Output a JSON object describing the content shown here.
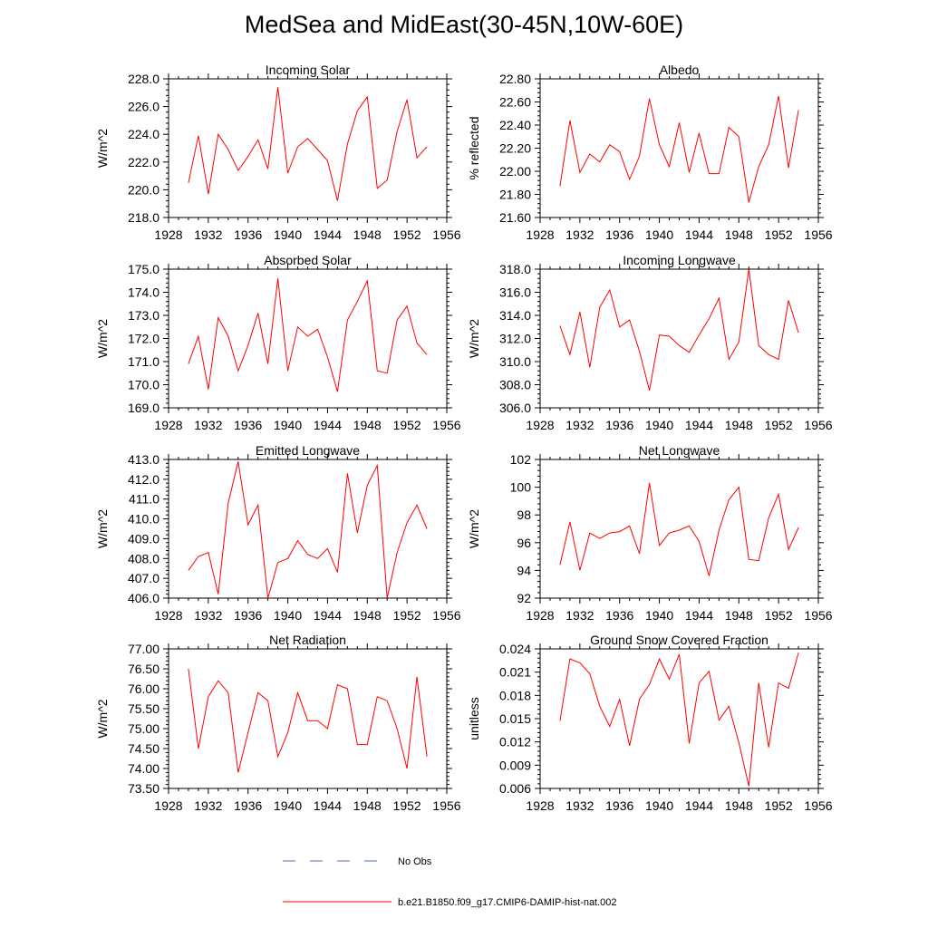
{
  "title": "MedSea and MidEast(30-45N,10W-60E)",
  "line_color": "#ff0000",
  "obs_color": "#4f6fbf",
  "legend": {
    "obs_label": "No Obs",
    "model_label": "b.e21.B1850.f09_g17.CMIP6-DAMIP-hist-nat.002"
  },
  "chart_data": [
    {
      "type": "line",
      "title": "Incoming Solar",
      "ylabel": "W/m^2",
      "xlim": [
        1928,
        1956
      ],
      "ylim": [
        218,
        228
      ],
      "xticks": [
        "1928",
        "1932",
        "1936",
        "1940",
        "1944",
        "1948",
        "1952",
        "1956"
      ],
      "yticks": [
        "218.0",
        "220.0",
        "222.0",
        "224.0",
        "226.0",
        "228.0"
      ],
      "x": [
        1930,
        1931,
        1932,
        1933,
        1934,
        1935,
        1936,
        1937,
        1938,
        1939,
        1940,
        1941,
        1942,
        1943,
        1944,
        1945,
        1946,
        1947,
        1948,
        1949,
        1950,
        1951,
        1952,
        1953,
        1954
      ],
      "values": [
        220.5,
        223.9,
        219.7,
        224.0,
        222.9,
        221.4,
        222.4,
        223.6,
        221.5,
        227.4,
        221.2,
        223.1,
        223.7,
        222.9,
        222.1,
        219.2,
        223.3,
        225.7,
        226.7,
        220.1,
        220.7,
        224.2,
        226.5,
        222.3,
        223.1
      ]
    },
    {
      "type": "line",
      "title": "Albedo",
      "ylabel": "% reflected",
      "xlim": [
        1928,
        1956
      ],
      "ylim": [
        21.6,
        22.8
      ],
      "xticks": [
        "1928",
        "1932",
        "1936",
        "1940",
        "1944",
        "1948",
        "1952",
        "1956"
      ],
      "yticks": [
        "21.60",
        "21.80",
        "22.00",
        "22.20",
        "22.40",
        "22.60",
        "22.80"
      ],
      "x": [
        1930,
        1931,
        1932,
        1933,
        1934,
        1935,
        1936,
        1937,
        1938,
        1939,
        1940,
        1941,
        1942,
        1943,
        1944,
        1945,
        1946,
        1947,
        1948,
        1949,
        1950,
        1951,
        1952,
        1953,
        1954
      ],
      "values": [
        21.87,
        22.44,
        21.99,
        22.15,
        22.08,
        22.23,
        22.17,
        21.93,
        22.13,
        22.63,
        22.23,
        22.04,
        22.42,
        21.99,
        22.33,
        21.98,
        21.98,
        22.38,
        22.3,
        21.73,
        22.04,
        22.23,
        22.65,
        22.03,
        22.53
      ]
    },
    {
      "type": "line",
      "title": "Absorbed Solar",
      "ylabel": "W/m^2",
      "xlim": [
        1928,
        1956
      ],
      "ylim": [
        169,
        175
      ],
      "xticks": [
        "1928",
        "1932",
        "1936",
        "1940",
        "1944",
        "1948",
        "1952",
        "1956"
      ],
      "yticks": [
        "169.0",
        "170.0",
        "171.0",
        "172.0",
        "173.0",
        "174.0",
        "175.0"
      ],
      "x": [
        1930,
        1931,
        1932,
        1933,
        1934,
        1935,
        1936,
        1937,
        1938,
        1939,
        1940,
        1941,
        1942,
        1943,
        1944,
        1945,
        1946,
        1947,
        1948,
        1949,
        1950,
        1951,
        1952,
        1953,
        1954
      ],
      "values": [
        170.9,
        172.1,
        169.8,
        172.9,
        172.1,
        170.6,
        171.7,
        173.1,
        170.9,
        174.6,
        170.6,
        172.5,
        172.1,
        172.4,
        171.2,
        169.7,
        172.8,
        173.6,
        174.5,
        170.6,
        170.5,
        172.8,
        173.4,
        171.8,
        171.3
      ]
    },
    {
      "type": "line",
      "title": "Incoming Longwave",
      "ylabel": "W/m^2",
      "xlim": [
        1928,
        1956
      ],
      "ylim": [
        306,
        318
      ],
      "xticks": [
        "1928",
        "1932",
        "1936",
        "1940",
        "1944",
        "1948",
        "1952",
        "1956"
      ],
      "yticks": [
        "306.0",
        "308.0",
        "310.0",
        "312.0",
        "314.0",
        "316.0",
        "318.0"
      ],
      "x": [
        1930,
        1931,
        1932,
        1933,
        1934,
        1935,
        1936,
        1937,
        1938,
        1939,
        1940,
        1941,
        1942,
        1943,
        1944,
        1945,
        1946,
        1947,
        1948,
        1949,
        1950,
        1951,
        1952,
        1953,
        1954
      ],
      "values": [
        313.1,
        310.6,
        314.3,
        309.5,
        314.7,
        316.2,
        313.0,
        313.6,
        310.9,
        307.5,
        312.3,
        312.2,
        311.4,
        310.8,
        312.3,
        313.7,
        315.5,
        310.2,
        311.7,
        318.0,
        311.4,
        310.6,
        310.2,
        315.3,
        312.5
      ]
    },
    {
      "type": "line",
      "title": "Emitted Longwave",
      "ylabel": "W/m^2",
      "xlim": [
        1928,
        1956
      ],
      "ylim": [
        406,
        413
      ],
      "xticks": [
        "1928",
        "1932",
        "1936",
        "1940",
        "1944",
        "1948",
        "1952",
        "1956"
      ],
      "yticks": [
        "406.0",
        "407.0",
        "408.0",
        "409.0",
        "410.0",
        "411.0",
        "412.0",
        "413.0"
      ],
      "x": [
        1930,
        1931,
        1932,
        1933,
        1934,
        1935,
        1936,
        1937,
        1938,
        1939,
        1940,
        1941,
        1942,
        1943,
        1944,
        1945,
        1946,
        1947,
        1948,
        1949,
        1950,
        1951,
        1952,
        1953,
        1954
      ],
      "values": [
        407.4,
        408.1,
        408.3,
        406.2,
        410.8,
        412.9,
        409.7,
        410.7,
        406.0,
        407.8,
        408.0,
        408.9,
        408.2,
        408.0,
        408.5,
        407.3,
        412.3,
        409.3,
        411.7,
        412.7,
        406.0,
        408.3,
        409.8,
        410.7,
        409.5
      ]
    },
    {
      "type": "line",
      "title": "Net Longwave",
      "ylabel": "W/m^2",
      "xlim": [
        1928,
        1956
      ],
      "ylim": [
        92,
        102
      ],
      "xticks": [
        "1928",
        "1932",
        "1936",
        "1940",
        "1944",
        "1948",
        "1952",
        "1956"
      ],
      "yticks": [
        "92",
        "94",
        "96",
        "98",
        "100",
        "102"
      ],
      "x": [
        1930,
        1931,
        1932,
        1933,
        1934,
        1935,
        1936,
        1937,
        1938,
        1939,
        1940,
        1941,
        1942,
        1943,
        1944,
        1945,
        1946,
        1947,
        1948,
        1949,
        1950,
        1951,
        1952,
        1953,
        1954
      ],
      "values": [
        94.4,
        97.5,
        94.0,
        96.7,
        96.3,
        96.7,
        96.8,
        97.2,
        95.2,
        100.3,
        95.8,
        96.7,
        96.9,
        97.2,
        96.1,
        93.6,
        96.9,
        99.1,
        100.0,
        94.8,
        94.7,
        97.8,
        99.5,
        95.5,
        97.1
      ]
    },
    {
      "type": "line",
      "title": "Net Radiation",
      "ylabel": "W/m^2",
      "xlim": [
        1928,
        1956
      ],
      "ylim": [
        73.5,
        77
      ],
      "xticks": [
        "1928",
        "1932",
        "1936",
        "1940",
        "1944",
        "1948",
        "1952",
        "1956"
      ],
      "yticks": [
        "73.50",
        "74.00",
        "74.50",
        "75.00",
        "75.50",
        "76.00",
        "76.50",
        "77.00"
      ],
      "x": [
        1930,
        1931,
        1932,
        1933,
        1934,
        1935,
        1936,
        1937,
        1938,
        1939,
        1940,
        1941,
        1942,
        1943,
        1944,
        1945,
        1946,
        1947,
        1948,
        1949,
        1950,
        1951,
        1952,
        1953,
        1954
      ],
      "values": [
        76.5,
        74.5,
        75.8,
        76.2,
        75.9,
        73.9,
        74.9,
        75.9,
        75.7,
        74.3,
        74.9,
        75.9,
        75.2,
        75.2,
        75.0,
        76.1,
        76.0,
        74.6,
        74.6,
        75.8,
        75.7,
        75.0,
        74.0,
        76.3,
        74.3
      ]
    },
    {
      "type": "line",
      "title": "Ground Snow Covered Fraction",
      "ylabel": "unitless",
      "xlim": [
        1928,
        1956
      ],
      "ylim": [
        0.006,
        0.024
      ],
      "xticks": [
        "1928",
        "1932",
        "1936",
        "1940",
        "1944",
        "1948",
        "1952",
        "1956"
      ],
      "yticks": [
        "0.006",
        "0.009",
        "0.012",
        "0.015",
        "0.018",
        "0.021",
        "0.024"
      ],
      "x": [
        1930,
        1931,
        1932,
        1933,
        1934,
        1935,
        1936,
        1937,
        1938,
        1939,
        1940,
        1941,
        1942,
        1943,
        1944,
        1945,
        1946,
        1947,
        1948,
        1949,
        1950,
        1951,
        1952,
        1953,
        1954
      ],
      "values": [
        0.0147,
        0.0227,
        0.0222,
        0.0208,
        0.0166,
        0.014,
        0.0175,
        0.0115,
        0.0175,
        0.0194,
        0.0227,
        0.0201,
        0.0233,
        0.0118,
        0.0196,
        0.0211,
        0.0148,
        0.0166,
        0.0119,
        0.0063,
        0.0196,
        0.0113,
        0.0196,
        0.0189,
        0.0235
      ]
    }
  ]
}
